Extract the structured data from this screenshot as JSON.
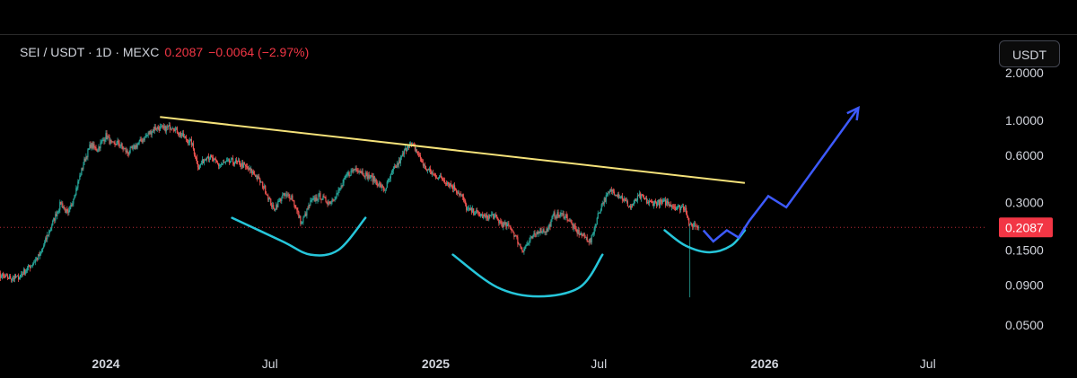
{
  "header": {
    "symbol": "SEI / USDT · 1D · MEXC",
    "price": "0.2087",
    "change": "−0.0064 (−2.97%)"
  },
  "currency_button": {
    "label": "USDT"
  },
  "colors": {
    "background": "#000000",
    "up_candle": "#26a69a",
    "down_candle": "#ef5350",
    "resistance_line": "#f5e27a",
    "rounded_bottoms": "#26c6da",
    "projection": "#3d5afe",
    "last_price_badge": "#f23645",
    "axis_text": "#d1d4dc"
  },
  "chart_data": {
    "type": "candlestick",
    "scale": "log",
    "title": "",
    "xlabel": "",
    "ylabel": "",
    "grid": false,
    "ylim": [
      0.04,
      2.6
    ],
    "xlim": [
      "2023-08-15",
      "2026-09-15"
    ],
    "x_ticks": [
      {
        "label": "2024",
        "date": "2024-01-01",
        "year": true
      },
      {
        "label": "Jul",
        "date": "2024-07-01",
        "year": false
      },
      {
        "label": "2025",
        "date": "2025-01-01",
        "year": true
      },
      {
        "label": "Jul",
        "date": "2025-07-01",
        "year": false
      },
      {
        "label": "2026",
        "date": "2026-01-01",
        "year": true
      },
      {
        "label": "Jul",
        "date": "2026-07-01",
        "year": false
      }
    ],
    "y_ticks": [
      {
        "label": "2.0000",
        "value": 2.0
      },
      {
        "label": "1.0000",
        "value": 1.0
      },
      {
        "label": "0.6000",
        "value": 0.6
      },
      {
        "label": "0.3000",
        "value": 0.3
      },
      {
        "label": "0.1500",
        "value": 0.15
      },
      {
        "label": "0.0900",
        "value": 0.09
      },
      {
        "label": "0.0500",
        "value": 0.05
      }
    ],
    "last_price": {
      "label": "0.2087",
      "value": 0.2087
    },
    "price_path": [
      [
        "2023-08-15",
        0.115
      ],
      [
        "2023-08-28",
        0.11
      ],
      [
        "2023-09-10",
        0.1
      ],
      [
        "2023-09-25",
        0.1
      ],
      [
        "2023-10-10",
        0.12
      ],
      [
        "2023-10-20",
        0.14
      ],
      [
        "2023-11-01",
        0.21
      ],
      [
        "2023-11-12",
        0.3
      ],
      [
        "2023-11-20",
        0.25
      ],
      [
        "2023-12-01",
        0.4
      ],
      [
        "2023-12-08",
        0.55
      ],
      [
        "2023-12-15",
        0.7
      ],
      [
        "2023-12-22",
        0.65
      ],
      [
        "2024-01-01",
        0.8
      ],
      [
        "2024-01-08",
        0.7
      ],
      [
        "2024-01-15",
        0.72
      ],
      [
        "2024-01-25",
        0.62
      ],
      [
        "2024-02-05",
        0.7
      ],
      [
        "2024-02-15",
        0.8
      ],
      [
        "2024-02-25",
        0.9
      ],
      [
        "2024-03-05",
        0.88
      ],
      [
        "2024-03-15",
        0.92
      ],
      [
        "2024-03-25",
        0.8
      ],
      [
        "2024-04-05",
        0.72
      ],
      [
        "2024-04-13",
        0.5
      ],
      [
        "2024-04-22",
        0.6
      ],
      [
        "2024-05-05",
        0.52
      ],
      [
        "2024-05-20",
        0.55
      ],
      [
        "2024-06-01",
        0.52
      ],
      [
        "2024-06-15",
        0.45
      ],
      [
        "2024-06-25",
        0.37
      ],
      [
        "2024-07-05",
        0.27
      ],
      [
        "2024-07-15",
        0.33
      ],
      [
        "2024-07-25",
        0.33
      ],
      [
        "2024-08-05",
        0.22
      ],
      [
        "2024-08-15",
        0.3
      ],
      [
        "2024-08-25",
        0.33
      ],
      [
        "2024-09-05",
        0.3
      ],
      [
        "2024-09-15",
        0.35
      ],
      [
        "2024-09-25",
        0.45
      ],
      [
        "2024-10-05",
        0.5
      ],
      [
        "2024-10-15",
        0.45
      ],
      [
        "2024-10-25",
        0.42
      ],
      [
        "2024-11-05",
        0.36
      ],
      [
        "2024-11-15",
        0.48
      ],
      [
        "2024-11-22",
        0.55
      ],
      [
        "2024-12-01",
        0.7
      ],
      [
        "2024-12-05",
        0.7
      ],
      [
        "2024-12-10",
        0.65
      ],
      [
        "2024-12-20",
        0.5
      ],
      [
        "2024-12-30",
        0.45
      ],
      [
        "2025-01-10",
        0.42
      ],
      [
        "2025-01-20",
        0.38
      ],
      [
        "2025-01-30",
        0.33
      ],
      [
        "2025-02-05",
        0.27
      ],
      [
        "2025-02-15",
        0.26
      ],
      [
        "2025-02-25",
        0.24
      ],
      [
        "2025-03-05",
        0.25
      ],
      [
        "2025-03-15",
        0.22
      ],
      [
        "2025-03-25",
        0.21
      ],
      [
        "2025-04-07",
        0.15
      ],
      [
        "2025-04-15",
        0.17
      ],
      [
        "2025-04-25",
        0.2
      ],
      [
        "2025-05-05",
        0.2
      ],
      [
        "2025-05-12",
        0.25
      ],
      [
        "2025-05-25",
        0.25
      ],
      [
        "2025-06-05",
        0.2
      ],
      [
        "2025-06-22",
        0.17
      ],
      [
        "2025-06-30",
        0.25
      ],
      [
        "2025-07-05",
        0.3
      ],
      [
        "2025-07-15",
        0.36
      ],
      [
        "2025-07-25",
        0.33
      ],
      [
        "2025-08-05",
        0.28
      ],
      [
        "2025-08-15",
        0.33
      ],
      [
        "2025-08-25",
        0.3
      ],
      [
        "2025-09-05",
        0.3
      ],
      [
        "2025-09-15",
        0.3
      ],
      [
        "2025-09-25",
        0.28
      ],
      [
        "2025-10-05",
        0.28
      ],
      [
        "2025-10-10",
        0.21
      ],
      [
        "2025-10-14",
        0.22
      ],
      [
        "2025-10-20",
        0.2087
      ]
    ],
    "crash_wick": {
      "date": "2025-10-10",
      "low": 0.075
    },
    "annotations": {
      "resistance_line": [
        [
          "2024-03-01",
          1.05
        ],
        [
          "2025-12-10",
          0.4
        ]
      ],
      "rounded_bottoms": [
        [
          [
            "2024-05-20",
            0.24
          ],
          [
            "2024-07-15",
            0.17
          ],
          [
            "2024-08-15",
            0.14
          ],
          [
            "2024-09-15",
            0.15
          ],
          [
            "2024-10-15",
            0.24
          ]
        ],
        [
          [
            "2025-01-20",
            0.14
          ],
          [
            "2025-03-10",
            0.087
          ],
          [
            "2025-04-25",
            0.076
          ],
          [
            "2025-06-10",
            0.087
          ],
          [
            "2025-07-05",
            0.14
          ]
        ],
        [
          [
            "2025-09-12",
            0.2
          ],
          [
            "2025-10-05",
            0.16
          ],
          [
            "2025-11-01",
            0.145
          ],
          [
            "2025-11-25",
            0.16
          ],
          [
            "2025-12-10",
            0.2
          ]
        ]
      ],
      "projection": [
        [
          "2025-10-25",
          0.2
        ],
        [
          "2025-11-05",
          0.17
        ],
        [
          "2025-11-20",
          0.2
        ],
        [
          "2025-12-03",
          0.18
        ],
        [
          "2025-12-15",
          0.23
        ],
        [
          "2026-01-05",
          0.33
        ],
        [
          "2026-01-25",
          0.28
        ],
        [
          "2026-04-15",
          1.2
        ]
      ]
    }
  }
}
